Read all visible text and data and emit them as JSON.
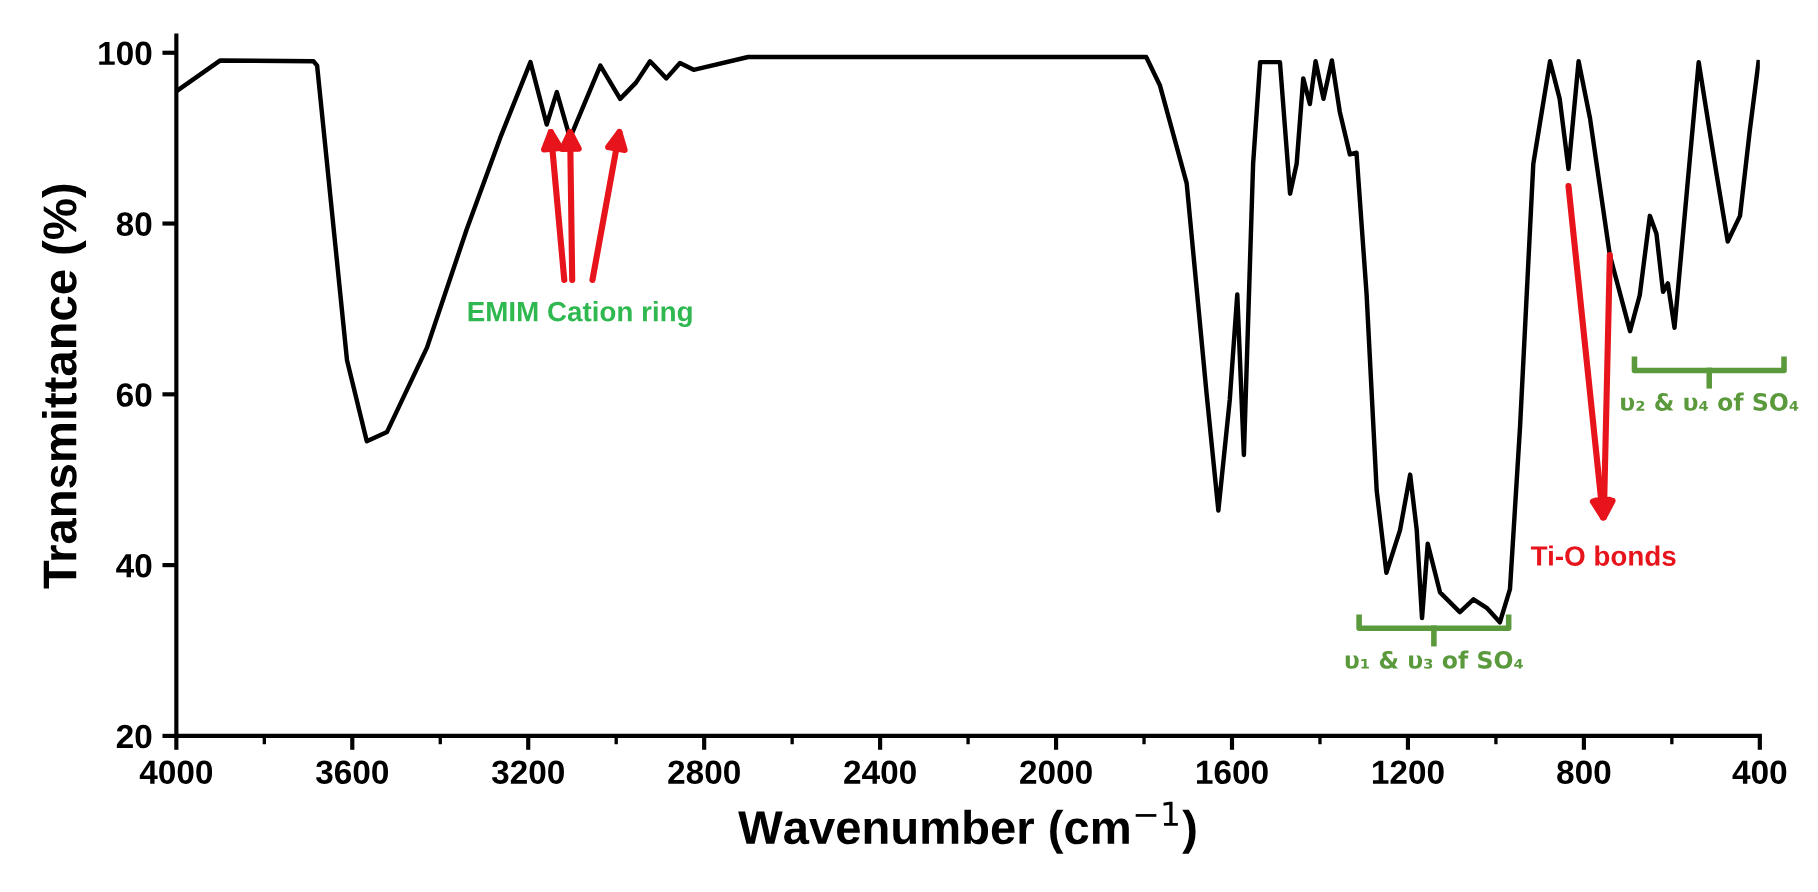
{
  "chart_data": {
    "type": "line",
    "xlabel": "Wavenumber (cm$^{−1}$)",
    "ylabel": "Transmittance (%)",
    "x": [
      4000,
      3900,
      3688,
      3680,
      3612,
      3567,
      3521,
      3430,
      3340,
      3264,
      3195,
      3158,
      3135,
      3105,
      3036,
      2991,
      2955,
      2923,
      2886,
      2855,
      2824,
      2700,
      2400,
      2100,
      1855,
      1795,
      1764,
      1703,
      1658,
      1631,
      1605,
      1588,
      1573,
      1552,
      1536,
      1491,
      1468,
      1453,
      1438,
      1423,
      1410,
      1392,
      1373,
      1355,
      1332,
      1317,
      1294,
      1271,
      1249,
      1218,
      1195,
      1180,
      1168,
      1155,
      1127,
      1082,
      1051,
      1021,
      991,
      968,
      945,
      915,
      877,
      855,
      835,
      812,
      786,
      741,
      695,
      673,
      650,
      635,
      620,
      609,
      594,
      567,
      539,
      514,
      499,
      473,
      445,
      423,
      403
    ],
    "series": [
      {
        "color": "#000000",
        "values": [
          95.5,
          99.1,
          99,
          98.5,
          64,
          54.5,
          55.6,
          65.5,
          79.3,
          90,
          98.9,
          91.6,
          95.4,
          90,
          98.5,
          94.6,
          96.5,
          99,
          97,
          98.8,
          98,
          99.5,
          99.5,
          99.5,
          99.5,
          99.5,
          96.2,
          84.7,
          60.2,
          46.4,
          59.4,
          71.7,
          52.9,
          87,
          98.9,
          98.9,
          83.5,
          87,
          97,
          94,
          99,
          94.6,
          99.1,
          93.1,
          88.1,
          88.3,
          71.7,
          48.7,
          39.1,
          44.1,
          50.6,
          44.1,
          33.8,
          42.5,
          36.8,
          34.5,
          36,
          35,
          33.3,
          37.2,
          56.3,
          87,
          99,
          94.6,
          86.4,
          99,
          92.3,
          76.3,
          67.4,
          71.6,
          80.9,
          78.8,
          72,
          73,
          67.8,
          83.1,
          98.9,
          90.8,
          86,
          77.9,
          80.9,
          90.8,
          98.9
        ]
      }
    ],
    "xlim": [
      4000,
      400
    ],
    "xticks": [
      4000,
      3600,
      3200,
      2800,
      2400,
      2000,
      1600,
      1200,
      800,
      400
    ],
    "ylim": [
      20,
      102
    ],
    "yticks": [
      20,
      40,
      60,
      80,
      100
    ],
    "annotations": [
      {
        "text": "EMIM Cation ring",
        "x": 3105,
        "y": 90
      },
      {
        "text": "Ti-O bonds",
        "x": 741,
        "y": 76.3
      },
      "υ₁ & υ₃ of SO₄",
      "υ₂ & υ₄ of SO₄"
    ],
    "grid": false,
    "legend": false,
    "marker": "none",
    "line_style": "solid"
  }
}
